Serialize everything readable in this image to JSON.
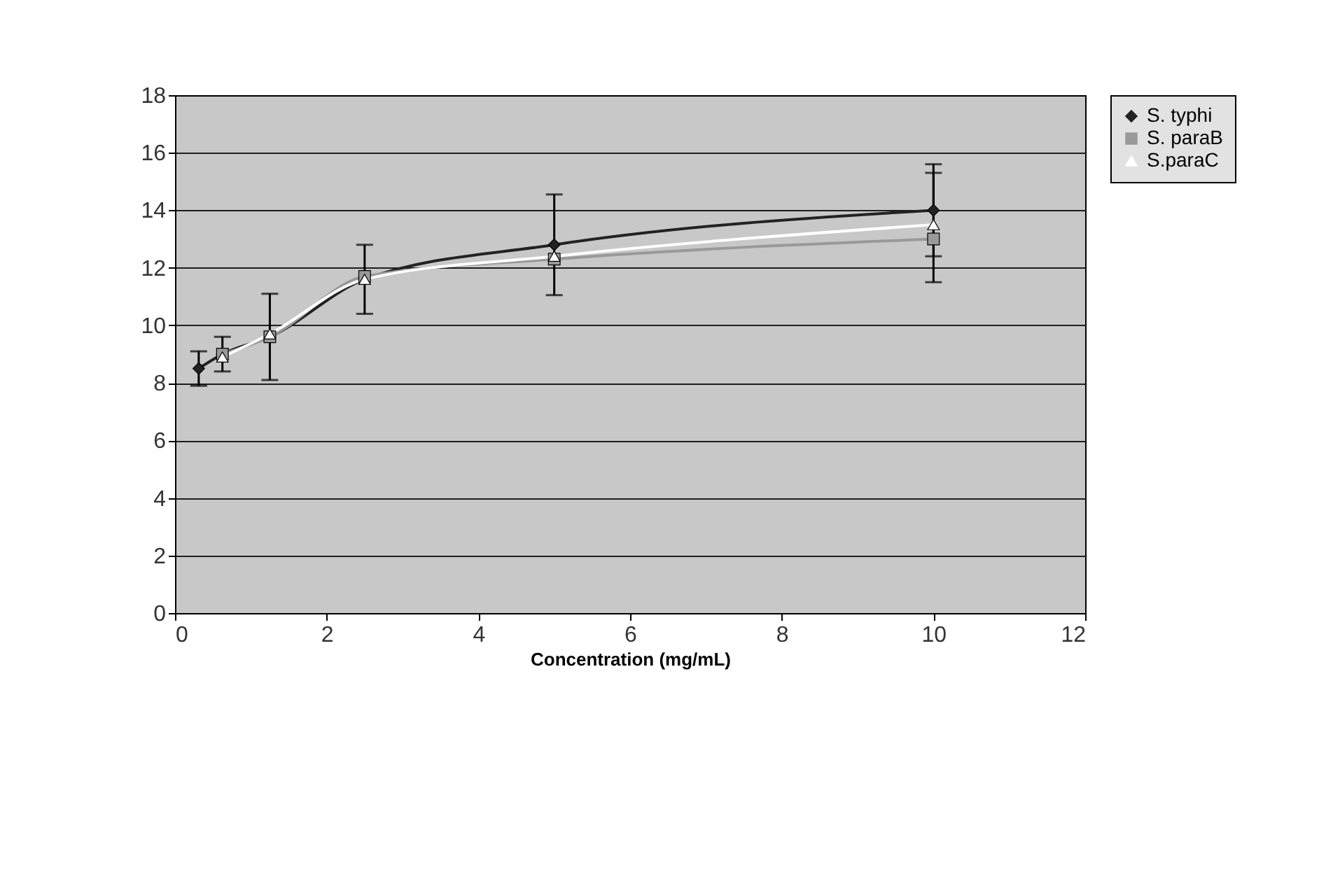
{
  "chart_data": {
    "type": "line",
    "xlabel": "Concentration (mg/mL)",
    "x": [
      0.3125,
      0.625,
      1.25,
      2.5,
      5,
      10
    ],
    "series": [
      {
        "name": "S. typhi",
        "color": "#222222",
        "marker": "diamond",
        "values": [
          8.5,
          9.0,
          9.6,
          11.6,
          12.8,
          14.0
        ],
        "errors": [
          0.6,
          null,
          1.5,
          1.2,
          1.75,
          1.6
        ]
      },
      {
        "name": "S. paraB",
        "color": "#999999",
        "marker": "square",
        "values": [
          null,
          9.0,
          9.6,
          11.7,
          12.3,
          13.0
        ],
        "errors": [
          null,
          0.6,
          null,
          null,
          null,
          null
        ]
      },
      {
        "name": "S.paraC",
        "color": "#ffffff",
        "marker": "triangle",
        "values": [
          null,
          8.9,
          9.7,
          11.6,
          12.4,
          13.5
        ],
        "errors": [
          null,
          null,
          null,
          null,
          null,
          [
            11.5,
            15.3
          ]
        ]
      }
    ],
    "xlim": [
      0,
      12
    ],
    "xticks": [
      0,
      2,
      4,
      6,
      8,
      10,
      12
    ],
    "ylim": [
      0,
      18
    ],
    "yticks": [
      0,
      2,
      4,
      6,
      8,
      10,
      12,
      14,
      16,
      18
    ],
    "grid": "y",
    "legend": "right"
  }
}
